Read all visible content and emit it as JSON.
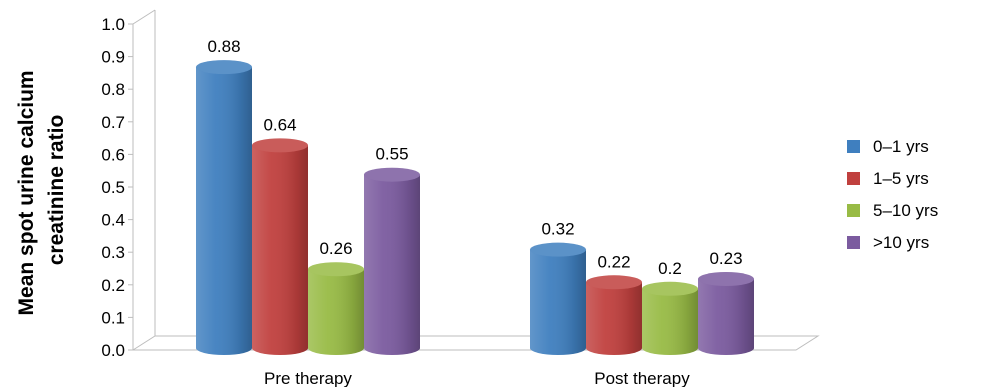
{
  "chart_data": {
    "type": "bar",
    "style": "3d-cylinder",
    "ylabel": "Mean spot urine calcium creatinine ratio",
    "ylabel_lines": [
      "Mean spot urine calcium",
      "creatinine ratio"
    ],
    "ylim": [
      0,
      1.0
    ],
    "yticks": [
      "0.0",
      "0.1",
      "0.2",
      "0.3",
      "0.4",
      "0.5",
      "0.6",
      "0.7",
      "0.8",
      "0.9",
      "1.0"
    ],
    "categories": [
      "Pre therapy",
      "Post therapy"
    ],
    "series": [
      {
        "name": "0–1 yrs",
        "color": "#3f7fbf",
        "values": [
          0.88,
          0.32
        ],
        "labels": [
          "0.88",
          "0.32"
        ]
      },
      {
        "name": "1–5 yrs",
        "color": "#c0403e",
        "values": [
          0.64,
          0.22
        ],
        "labels": [
          "0.64",
          "0.22"
        ]
      },
      {
        "name": "5–10 yrs",
        "color": "#98bb45",
        "values": [
          0.26,
          0.2
        ],
        "labels": [
          "0.26",
          "0.2"
        ]
      },
      {
        "name": ">10 yrs",
        "color": "#7b5b9f",
        "values": [
          0.55,
          0.23
        ],
        "labels": [
          "0.55",
          "0.23"
        ]
      }
    ],
    "legend": "right",
    "grid": false
  }
}
